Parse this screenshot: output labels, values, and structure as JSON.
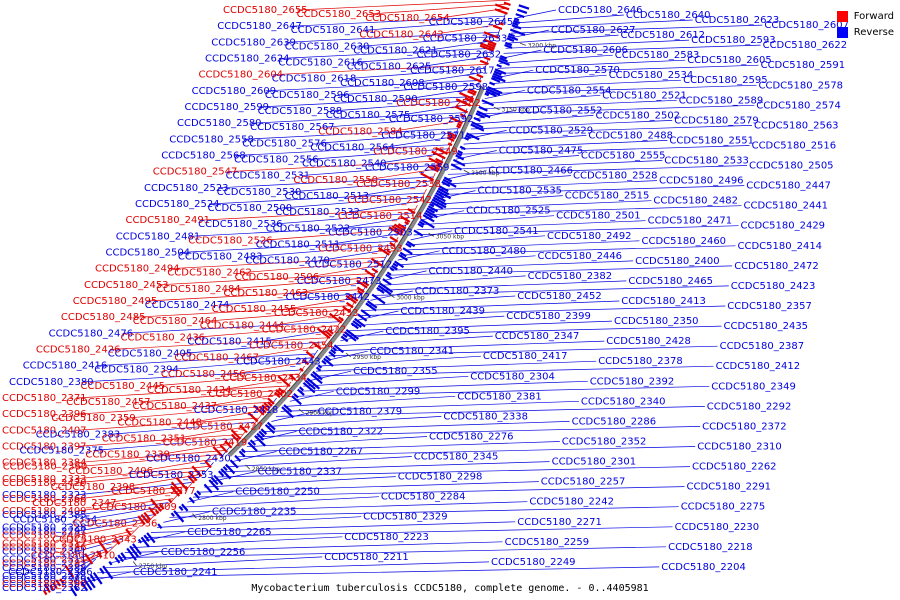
{
  "colors": {
    "forward": "#e00000",
    "reverse": "#0000e0",
    "backbone": "#888888"
  },
  "legend": [
    {
      "label": "Forward",
      "color": "#ff0000"
    },
    {
      "label": "Reverse",
      "color": "#0000ff"
    }
  ],
  "caption": "Mycobacterium tuberculosis CCDC5180, complete genome. - 0..4405981",
  "ticks": [
    "3200 kbp",
    "3150 kbp",
    "3100 kbp",
    "3050 kbp",
    "3000 kbp",
    "2950 kbp",
    "2900 kbp",
    "2850 kbp",
    "2800 kbp",
    "2750 kbp"
  ],
  "left_labels": [
    {
      "t": "CCDC5180_2655",
      "s": "f"
    },
    {
      "t": "CCDC5180_2653",
      "s": "f"
    },
    {
      "t": "CCDC5180_2654",
      "s": "f"
    },
    {
      "t": "CCDC5180_2645",
      "s": "r"
    },
    {
      "t": "CCDC5180_2647",
      "s": "r"
    },
    {
      "t": "CCDC5180_2641",
      "s": "r"
    },
    {
      "t": "CCDC5180_2642",
      "s": "f"
    },
    {
      "t": "CCDC5180_2633",
      "s": "r"
    },
    {
      "t": "CCDC5180_2639",
      "s": "r"
    },
    {
      "t": "CCDC5180_2630",
      "s": "r"
    },
    {
      "t": "CCDC5180_2621",
      "s": "r"
    },
    {
      "t": "CCDC5180_2632",
      "s": "r"
    },
    {
      "t": "CCDC5180_2624",
      "s": "r"
    },
    {
      "t": "CCDC5180_2616",
      "s": "r"
    },
    {
      "t": "CCDC5180_2625",
      "s": "r"
    },
    {
      "t": "CCDC5180_2617",
      "s": "r"
    },
    {
      "t": "CCDC5180_2604",
      "s": "f"
    },
    {
      "t": "CCDC5180_2618",
      "s": "r"
    },
    {
      "t": "CCDC5180_2608",
      "s": "r"
    },
    {
      "t": "CCDC5180_2598",
      "s": "r"
    },
    {
      "t": "CCDC5180_2609",
      "s": "r"
    },
    {
      "t": "CCDC5180_2596",
      "s": "r"
    },
    {
      "t": "CCDC5180_2590",
      "s": "r"
    },
    {
      "t": "CCDC5180_2582",
      "s": "f"
    },
    {
      "t": "CCDC5180_2599",
      "s": "r"
    },
    {
      "t": "CCDC5180_2588",
      "s": "r"
    },
    {
      "t": "CCDC5180_2575",
      "s": "r"
    },
    {
      "t": "CCDC5180_2592",
      "s": "r"
    },
    {
      "t": "CCDC5180_2580",
      "s": "r"
    },
    {
      "t": "CCDC5180_2567",
      "s": "r"
    },
    {
      "t": "CCDC5180_2584",
      "s": "f"
    },
    {
      "t": "CCDC5180_2571",
      "s": "r"
    },
    {
      "t": "CCDC5180_2558",
      "s": "r"
    },
    {
      "t": "CCDC5180_2576",
      "s": "r"
    },
    {
      "t": "CCDC5180_2564",
      "s": "r"
    },
    {
      "t": "CCDC5180_2549",
      "s": "f"
    },
    {
      "t": "CCDC5180_2568",
      "s": "r"
    },
    {
      "t": "CCDC5180_2556",
      "s": "r"
    },
    {
      "t": "CCDC5180_2540",
      "s": "r"
    },
    {
      "t": "CCDC5180_2559",
      "s": "r"
    },
    {
      "t": "CCDC5180_2547",
      "s": "f"
    },
    {
      "t": "CCDC5180_2531",
      "s": "r"
    },
    {
      "t": "CCDC5180_2550",
      "s": "f"
    },
    {
      "t": "CCDC5180_2538",
      "s": "f"
    },
    {
      "t": "CCDC5180_2523",
      "s": "r"
    },
    {
      "t": "CCDC5180_2530",
      "s": "r"
    },
    {
      "t": "CCDC5180_2513",
      "s": "r"
    },
    {
      "t": "CCDC5180_2542",
      "s": "f"
    },
    {
      "t": "CCDC5180_2524",
      "s": "r"
    },
    {
      "t": "CCDC5180_2500",
      "s": "r"
    },
    {
      "t": "CCDC5180_2532",
      "s": "r"
    },
    {
      "t": "CCDC5180_2514",
      "s": "f"
    },
    {
      "t": "CCDC5180_2491",
      "s": "f"
    },
    {
      "t": "CCDC5180_2536",
      "s": "r"
    },
    {
      "t": "CCDC5180_2522",
      "s": "r"
    },
    {
      "t": "CCDC5180_2503",
      "s": "r"
    },
    {
      "t": "CCDC5180_2481",
      "s": "r"
    },
    {
      "t": "CCDC5180_2526",
      "s": "f"
    },
    {
      "t": "CCDC5180_2511",
      "s": "r"
    },
    {
      "t": "CCDC5180_2493",
      "s": "f"
    },
    {
      "t": "CCDC5180_2504",
      "s": "r"
    },
    {
      "t": "CCDC5180_2483",
      "s": "r"
    },
    {
      "t": "CCDC5180_2470",
      "s": "r"
    },
    {
      "t": "CCDC5180_2512",
      "s": "r"
    },
    {
      "t": "CCDC5180_2494",
      "s": "f"
    },
    {
      "t": "CCDC5180_2462",
      "s": "f"
    },
    {
      "t": "CCDC5180_2506",
      "s": "f"
    },
    {
      "t": "CCDC5180_2473",
      "s": "r"
    },
    {
      "t": "CCDC5180_2453",
      "s": "f"
    },
    {
      "t": "CCDC5180_2484",
      "s": "f"
    },
    {
      "t": "CCDC5180_2463",
      "s": "f"
    },
    {
      "t": "CCDC5180_2442",
      "s": "r"
    },
    {
      "t": "CCDC5180_2495",
      "s": "f"
    },
    {
      "t": "CCDC5180_2474",
      "s": "r"
    },
    {
      "t": "CCDC5180_2455",
      "s": "f"
    },
    {
      "t": "CCDC5180_2433",
      "s": "f"
    },
    {
      "t": "CCDC5180_2485",
      "s": "f"
    },
    {
      "t": "CCDC5180_2464",
      "s": "f"
    },
    {
      "t": "CCDC5180_2444",
      "s": "f"
    },
    {
      "t": "CCDC5180_2422",
      "s": "f"
    },
    {
      "t": "CCDC5180_2476",
      "s": "r"
    },
    {
      "t": "CCDC5180_2436",
      "s": "f"
    },
    {
      "t": "CCDC5180_2415",
      "s": "r"
    },
    {
      "t": "CCDC5180_2454",
      "s": "f"
    },
    {
      "t": "CCDC5180_2426",
      "s": "f"
    },
    {
      "t": "CCDC5180_2405",
      "s": "r"
    },
    {
      "t": "CCDC5180_2467",
      "s": "f"
    },
    {
      "t": "CCDC5180_2443",
      "s": "r"
    },
    {
      "t": "CCDC5180_2416",
      "s": "r"
    },
    {
      "t": "CCDC5180_2394",
      "s": "r"
    },
    {
      "t": "CCDC5180_2456",
      "s": "f"
    },
    {
      "t": "CCDC5180_2434",
      "s": "f"
    },
    {
      "t": "CCDC5180_2380",
      "s": "r"
    },
    {
      "t": "CCDC5180_2445",
      "s": "f"
    },
    {
      "t": "CCDC5180_2424",
      "s": "f"
    },
    {
      "t": "CCDC5180_2402",
      "s": "f"
    },
    {
      "t": "CCDC5180_2371",
      "s": "f"
    },
    {
      "t": "CCDC5180_2457",
      "s": "f"
    },
    {
      "t": "CCDC5180_2437",
      "s": "f"
    },
    {
      "t": "CCDC5180_2418",
      "s": "r"
    },
    {
      "t": "CCDC5180_2396",
      "s": "f"
    },
    {
      "t": "CCDC5180_2359",
      "s": "f"
    },
    {
      "t": "CCDC5180_2448",
      "s": "f"
    },
    {
      "t": "CCDC5180_2427",
      "s": "f"
    },
    {
      "t": "CCDC5180_2407",
      "s": "f"
    },
    {
      "t": "CCDC5180_2383",
      "s": "r"
    },
    {
      "t": "CCDC5180_2351",
      "s": "f"
    },
    {
      "t": "CCDC5180_2419",
      "s": "f"
    },
    {
      "t": "CCDC5180_2397",
      "s": "f"
    },
    {
      "t": "CCDC5180_2375",
      "s": "r"
    },
    {
      "t": "CCDC5180_2339",
      "s": "f"
    },
    {
      "t": "CCDC5180_2430",
      "s": "r"
    },
    {
      "t": "CCDC5180_2384",
      "s": "f"
    },
    {
      "t": "CCDC5180_2360",
      "s": "f"
    },
    {
      "t": "CCDC5180_2406",
      "s": "f"
    },
    {
      "t": "CCDC5180_2353",
      "s": "r"
    },
    {
      "t": "CCDC5180_2333",
      "s": "f"
    },
    {
      "t": "CCDC5180_2420",
      "s": "f"
    },
    {
      "t": "CCDC5180_2398",
      "s": "f"
    },
    {
      "t": "CCDC5180_2377",
      "s": "f"
    },
    {
      "t": "CCDC5180_2323",
      "s": "r"
    },
    {
      "t": "CCDC5180_2366",
      "s": "f"
    },
    {
      "t": "CCDC5180_2347",
      "s": "f"
    },
    {
      "t": "CCDC5180_2309",
      "s": "f"
    },
    {
      "t": "CCDC5180_2409",
      "s": "f"
    },
    {
      "t": "CCDC5180_2385",
      "s": "r"
    },
    {
      "t": "CCDC5180_2354",
      "s": "r"
    },
    {
      "t": "CCDC5180_2336",
      "s": "f"
    },
    {
      "t": "CCDC5180_2328",
      "s": "r"
    },
    {
      "t": "CCDC5180_2297",
      "s": "r"
    },
    {
      "t": "CCDC5180_2403",
      "s": "f"
    },
    {
      "t": "CCDC5180_2343",
      "s": "f"
    },
    {
      "t": "CCDC5180_2317",
      "s": "f"
    },
    {
      "t": "CCDC5180_2386",
      "s": "f"
    },
    {
      "t": "CCDC5180_2361",
      "s": "r"
    },
    {
      "t": "CCDC5180_2410",
      "s": "f"
    },
    {
      "t": "CCDC5180_2311",
      "s": "r"
    },
    {
      "t": "CCDC5180_2287",
      "s": "f"
    },
    {
      "t": "CCDC5180_2388",
      "s": "r"
    },
    {
      "t": "CCDC5180_2356",
      "s": "r"
    },
    {
      "t": "CCDC5180_2278",
      "s": "r"
    },
    {
      "t": "CCDC5180_2389",
      "s": "r"
    },
    {
      "t": "CCDC5180_2390",
      "s": "f"
    },
    {
      "t": "CCDC5180_2362",
      "s": "r"
    }
  ],
  "right_labels": [
    {
      "t": "CCDC5180_2646",
      "s": "r"
    },
    {
      "t": "CCDC5180_2640",
      "s": "r"
    },
    {
      "t": "CCDC5180_2623",
      "s": "r"
    },
    {
      "t": "CCDC5180_2607",
      "s": "r"
    },
    {
      "t": "CCDC5180_2627",
      "s": "r"
    },
    {
      "t": "CCDC5180_2612",
      "s": "r"
    },
    {
      "t": "CCDC5180_2593",
      "s": "r"
    },
    {
      "t": "CCDC5180_2622",
      "s": "r"
    },
    {
      "t": "CCDC5180_2606",
      "s": "r"
    },
    {
      "t": "CCDC5180_2583",
      "s": "r"
    },
    {
      "t": "CCDC5180_2605",
      "s": "r"
    },
    {
      "t": "CCDC5180_2591",
      "s": "r"
    },
    {
      "t": "CCDC5180_2570",
      "s": "r"
    },
    {
      "t": "CCDC5180_2534",
      "s": "r"
    },
    {
      "t": "CCDC5180_2595",
      "s": "r"
    },
    {
      "t": "CCDC5180_2578",
      "s": "r"
    },
    {
      "t": "CCDC5180_2554",
      "s": "r"
    },
    {
      "t": "CCDC5180_2521",
      "s": "r"
    },
    {
      "t": "CCDC5180_2589",
      "s": "r"
    },
    {
      "t": "CCDC5180_2574",
      "s": "r"
    },
    {
      "t": "CCDC5180_2552",
      "s": "r"
    },
    {
      "t": "CCDC5180_2502",
      "s": "r"
    },
    {
      "t": "CCDC5180_2579",
      "s": "r"
    },
    {
      "t": "CCDC5180_2563",
      "s": "r"
    },
    {
      "t": "CCDC5180_2529",
      "s": "r"
    },
    {
      "t": "CCDC5180_2488",
      "s": "r"
    },
    {
      "t": "CCDC5180_2551",
      "s": "r"
    },
    {
      "t": "CCDC5180_2516",
      "s": "r"
    },
    {
      "t": "CCDC5180_2475",
      "s": "r"
    },
    {
      "t": "CCDC5180_2555",
      "s": "r"
    },
    {
      "t": "CCDC5180_2533",
      "s": "r"
    },
    {
      "t": "CCDC5180_2505",
      "s": "r"
    },
    {
      "t": "CCDC5180_2466",
      "s": "r"
    },
    {
      "t": "CCDC5180_2528",
      "s": "r"
    },
    {
      "t": "CCDC5180_2496",
      "s": "r"
    },
    {
      "t": "CCDC5180_2447",
      "s": "r"
    },
    {
      "t": "CCDC5180_2535",
      "s": "r"
    },
    {
      "t": "CCDC5180_2515",
      "s": "r"
    },
    {
      "t": "CCDC5180_2482",
      "s": "r"
    },
    {
      "t": "CCDC5180_2441",
      "s": "r"
    },
    {
      "t": "CCDC5180_2525",
      "s": "r"
    },
    {
      "t": "CCDC5180_2501",
      "s": "r"
    },
    {
      "t": "CCDC5180_2471",
      "s": "r"
    },
    {
      "t": "CCDC5180_2429",
      "s": "r"
    },
    {
      "t": "CCDC5180_2541",
      "s": "r"
    },
    {
      "t": "CCDC5180_2492",
      "s": "r"
    },
    {
      "t": "CCDC5180_2460",
      "s": "r"
    },
    {
      "t": "CCDC5180_2414",
      "s": "r"
    },
    {
      "t": "CCDC5180_2480",
      "s": "r"
    },
    {
      "t": "CCDC5180_2446",
      "s": "r"
    },
    {
      "t": "CCDC5180_2400",
      "s": "r"
    },
    {
      "t": "CCDC5180_2472",
      "s": "r"
    },
    {
      "t": "CCDC5180_2440",
      "s": "r"
    },
    {
      "t": "CCDC5180_2382",
      "s": "r"
    },
    {
      "t": "CCDC5180_2465",
      "s": "r"
    },
    {
      "t": "CCDC5180_2423",
      "s": "r"
    },
    {
      "t": "CCDC5180_2373",
      "s": "r"
    },
    {
      "t": "CCDC5180_2452",
      "s": "r"
    },
    {
      "t": "CCDC5180_2413",
      "s": "r"
    },
    {
      "t": "CCDC5180_2357",
      "s": "r"
    },
    {
      "t": "CCDC5180_2439",
      "s": "r"
    },
    {
      "t": "CCDC5180_2399",
      "s": "r"
    },
    {
      "t": "CCDC5180_2350",
      "s": "r"
    },
    {
      "t": "CCDC5180_2435",
      "s": "r"
    },
    {
      "t": "CCDC5180_2395",
      "s": "r"
    },
    {
      "t": "CCDC5180_2347",
      "s": "r"
    },
    {
      "t": "CCDC5180_2428",
      "s": "r"
    },
    {
      "t": "CCDC5180_2387",
      "s": "r"
    },
    {
      "t": "CCDC5180_2341",
      "s": "r"
    },
    {
      "t": "CCDC5180_2417",
      "s": "r"
    },
    {
      "t": "CCDC5180_2378",
      "s": "r"
    },
    {
      "t": "CCDC5180_2412",
      "s": "r"
    },
    {
      "t": "CCDC5180_2355",
      "s": "r"
    },
    {
      "t": "CCDC5180_2304",
      "s": "r"
    },
    {
      "t": "CCDC5180_2392",
      "s": "r"
    },
    {
      "t": "CCDC5180_2349",
      "s": "r"
    },
    {
      "t": "CCDC5180_2299",
      "s": "r"
    },
    {
      "t": "CCDC5180_2381",
      "s": "r"
    },
    {
      "t": "CCDC5180_2340",
      "s": "r"
    },
    {
      "t": "CCDC5180_2292",
      "s": "r"
    },
    {
      "t": "CCDC5180_2379",
      "s": "r"
    },
    {
      "t": "CCDC5180_2338",
      "s": "r"
    },
    {
      "t": "CCDC5180_2286",
      "s": "r"
    },
    {
      "t": "CCDC5180_2372",
      "s": "r"
    },
    {
      "t": "CCDC5180_2322",
      "s": "r"
    },
    {
      "t": "CCDC5180_2276",
      "s": "r"
    },
    {
      "t": "CCDC5180_2352",
      "s": "r"
    },
    {
      "t": "CCDC5180_2310",
      "s": "r"
    },
    {
      "t": "CCDC5180_2267",
      "s": "r"
    },
    {
      "t": "CCDC5180_2345",
      "s": "r"
    },
    {
      "t": "CCDC5180_2301",
      "s": "r"
    },
    {
      "t": "CCDC5180_2262",
      "s": "r"
    },
    {
      "t": "CCDC5180_2337",
      "s": "r"
    },
    {
      "t": "CCDC5180_2298",
      "s": "r"
    },
    {
      "t": "CCDC5180_2257",
      "s": "r"
    },
    {
      "t": "CCDC5180_2291",
      "s": "r"
    },
    {
      "t": "CCDC5180_2250",
      "s": "r"
    },
    {
      "t": "CCDC5180_2284",
      "s": "r"
    },
    {
      "t": "CCDC5180_2242",
      "s": "r"
    },
    {
      "t": "CCDC5180_2275",
      "s": "r"
    },
    {
      "t": "CCDC5180_2235",
      "s": "r"
    },
    {
      "t": "CCDC5180_2329",
      "s": "r"
    },
    {
      "t": "CCDC5180_2271",
      "s": "r"
    },
    {
      "t": "CCDC5180_2230",
      "s": "r"
    },
    {
      "t": "CCDC5180_2265",
      "s": "r"
    },
    {
      "t": "CCDC5180_2223",
      "s": "r"
    },
    {
      "t": "CCDC5180_2259",
      "s": "r"
    },
    {
      "t": "CCDC5180_2218",
      "s": "r"
    },
    {
      "t": "CCDC5180_2256",
      "s": "r"
    },
    {
      "t": "CCDC5180_2211",
      "s": "r"
    },
    {
      "t": "CCDC5180_2249",
      "s": "r"
    },
    {
      "t": "CCDC5180_2204",
      "s": "r"
    },
    {
      "t": "CCDC5180_2241",
      "s": "r"
    }
  ]
}
